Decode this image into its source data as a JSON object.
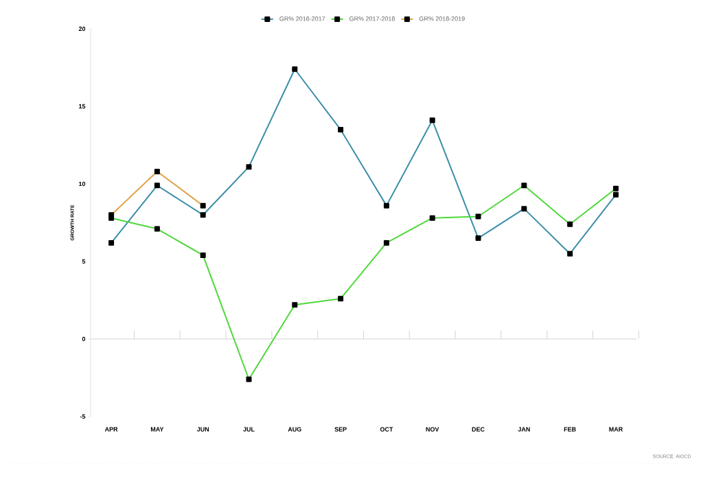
{
  "chart_data": {
    "type": "line",
    "categories": [
      "APR",
      "MAY",
      "JUN",
      "JUL",
      "AUG",
      "SEP",
      "OCT",
      "NOV",
      "DEC",
      "JAN",
      "FEB",
      "MAR"
    ],
    "ylabel": "GROWTH RATE",
    "series": [
      {
        "name": "GR% 2016-2017",
        "color": "#3a8ea8",
        "values": [
          6.2,
          9.9,
          8.0,
          11.1,
          17.4,
          13.5,
          8.6,
          14.1,
          6.5,
          8.4,
          5.5,
          9.3
        ]
      },
      {
        "name": "GR% 2017-2018",
        "color": "#4ed83a",
        "values": [
          7.8,
          7.1,
          5.4,
          -2.6,
          2.2,
          2.6,
          6.2,
          7.8,
          7.9,
          9.9,
          7.4,
          9.7
        ]
      },
      {
        "name": "GR% 2018-2019",
        "color": "#e0a24a",
        "values": [
          8.0,
          10.8,
          8.6,
          null,
          null,
          null,
          null,
          null,
          null,
          null,
          null,
          null
        ]
      }
    ],
    "ylim": [
      -5,
      20
    ],
    "yticks": [
      -5,
      0,
      5,
      10,
      15,
      20
    ],
    "ref_lines": [
      {
        "axis": "y",
        "value": 0,
        "color": "#c8c8c8"
      }
    ],
    "grid": false,
    "legend": "top",
    "marker": "square",
    "line_style": "solid",
    "annotations": [
      "SOURCE: AIOCD"
    ]
  }
}
